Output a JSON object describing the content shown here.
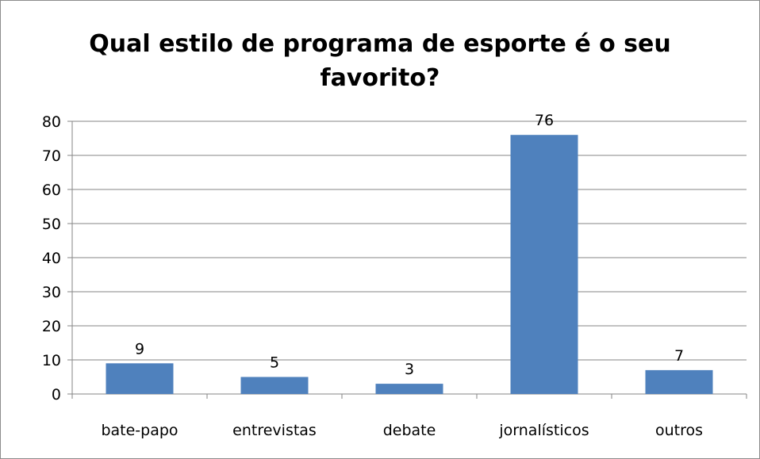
{
  "chart_data": {
    "type": "bar",
    "title": "Qual estilo de programa de esporte é o seu favorito?",
    "title_lines": [
      "Qual estilo de programa de esporte é o seu",
      "favorito?"
    ],
    "categories": [
      "bate-papo",
      "entrevistas",
      "debate",
      "jornalísticos",
      "outros"
    ],
    "values": [
      9,
      5,
      3,
      76,
      7
    ],
    "data_labels": [
      "9",
      "5",
      "3",
      "76",
      "7"
    ],
    "xlabel": "",
    "ylabel": "",
    "ylim": [
      0,
      80
    ],
    "yticks": [
      "0",
      "10",
      "20",
      "30",
      "40",
      "50",
      "60",
      "70",
      "80"
    ],
    "grid": true,
    "legend": "none",
    "colors": {
      "bar": "#4f81bd",
      "grid": "#868686",
      "axis": "#868686",
      "border": "#8c8c8c"
    }
  }
}
